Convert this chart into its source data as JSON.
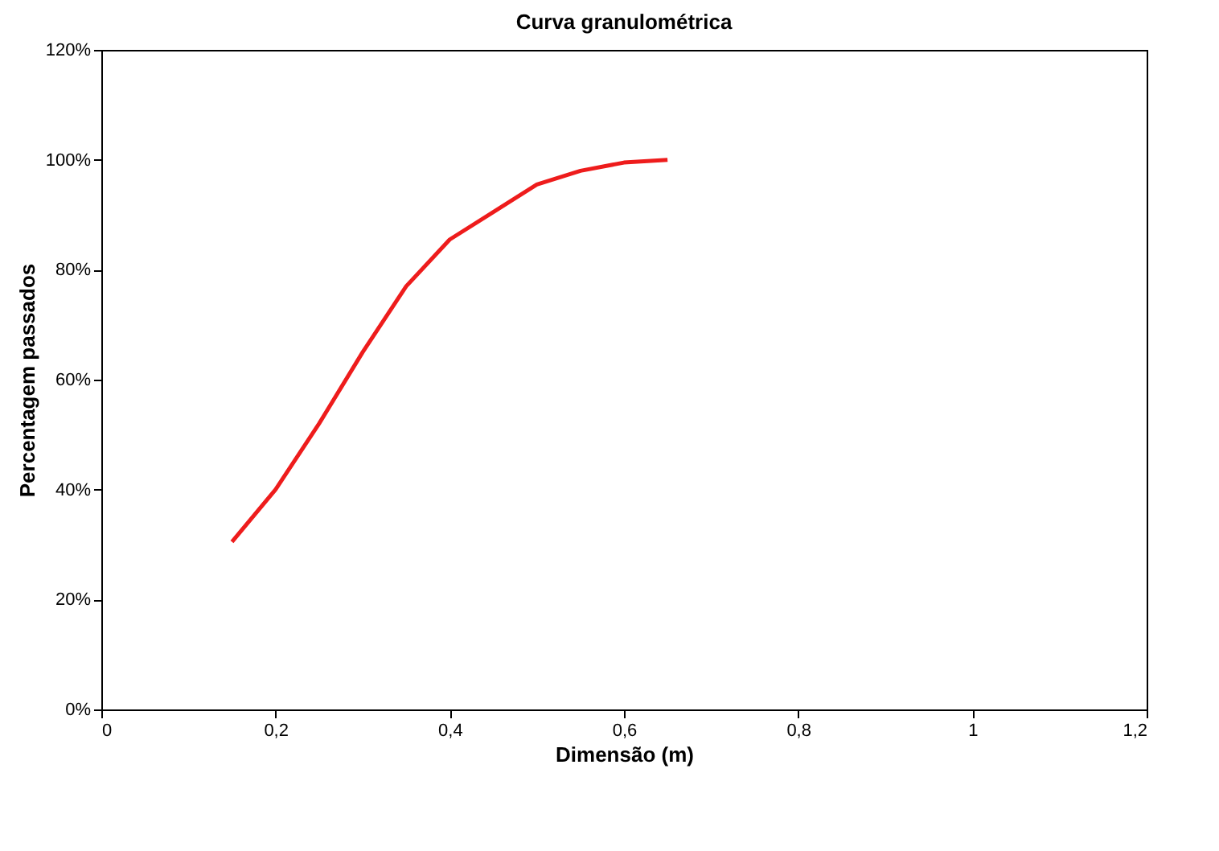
{
  "chart_data": {
    "type": "line",
    "title": "Curva granulométrica",
    "xlabel": "Dimensão (m)",
    "ylabel": "Percentagem passados",
    "x": [
      0.15,
      0.2,
      0.25,
      0.3,
      0.35,
      0.4,
      0.45,
      0.5,
      0.55,
      0.6,
      0.65
    ],
    "series": [
      {
        "color": "#ee1c1c",
        "values": [
          30.5,
          40,
          52,
          65,
          77,
          85.5,
          90.5,
          95.5,
          98,
          99.5,
          100
        ]
      }
    ],
    "xlim": [
      0,
      1.2
    ],
    "xticks": [
      0,
      {
        "value": 0.2,
        "label": "0,2"
      },
      {
        "value": 0.4,
        "label": "0,4"
      },
      {
        "value": 0.6,
        "label": "0,6"
      },
      {
        "value": 0.8,
        "label": "0,8"
      },
      1,
      {
        "value": 1.2,
        "label": "1,2"
      }
    ],
    "ylim": [
      0,
      120
    ],
    "yticks": [
      {
        "value": 0,
        "label": "0%"
      },
      {
        "value": 20,
        "label": "20%"
      },
      {
        "value": 40,
        "label": "40%"
      },
      {
        "value": 60,
        "label": "60%"
      },
      {
        "value": 80,
        "label": "80%"
      },
      {
        "value": 100,
        "label": "100%"
      },
      {
        "value": 120,
        "label": "120%"
      }
    ],
    "grid": false,
    "marker": "none",
    "line_style": "solid"
  }
}
